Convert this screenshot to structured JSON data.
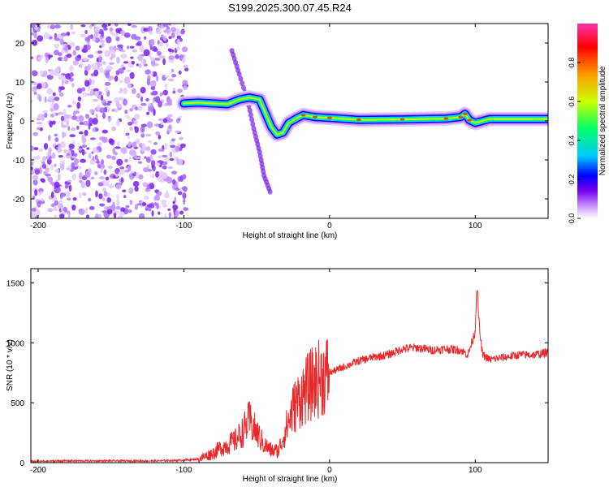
{
  "page": {
    "title": "S199.2025.300.07.45.R24"
  },
  "chart_data": [
    {
      "type": "heatmap",
      "title": "S199.2025.300.07.45.R24",
      "xlabel": "Height of straight line (km)",
      "ylabel": "Frequency (Hz)",
      "xlim": [
        -205,
        150
      ],
      "ylim": [
        -25,
        25
      ],
      "x_ticks": [
        -200,
        -100,
        0,
        100
      ],
      "y_ticks": [
        -20,
        -10,
        0,
        10,
        20
      ],
      "colorbar": {
        "label": "Normalized spectral amplitude",
        "range": [
          0,
          1
        ],
        "ticks": [
          0.0,
          0.2,
          0.4,
          0.6,
          0.8
        ],
        "colormap": [
          "#ffffff",
          "#cc99ff",
          "#7700ee",
          "#0000ff",
          "#00ccff",
          "#00ff66",
          "#ccff00",
          "#ff9900",
          "#ff0000",
          "#ff33aa"
        ]
      },
      "ridge": [
        {
          "x": -100,
          "f": 4.5
        },
        {
          "x": -90,
          "f": 4.7
        },
        {
          "x": -80,
          "f": 4.5
        },
        {
          "x": -70,
          "f": 4.3
        },
        {
          "x": -62,
          "f": 5.5
        },
        {
          "x": -55,
          "f": 6.0
        },
        {
          "x": -48,
          "f": 5.5
        },
        {
          "x": -44,
          "f": 2.0
        },
        {
          "x": -40,
          "f": -1.5
        },
        {
          "x": -36,
          "f": -3.5
        },
        {
          "x": -32,
          "f": -3.0
        },
        {
          "x": -28,
          "f": -0.5
        },
        {
          "x": -22,
          "f": 0.8
        },
        {
          "x": -18,
          "f": 1.5
        },
        {
          "x": -10,
          "f": 1.0
        },
        {
          "x": 0,
          "f": 0.8
        },
        {
          "x": 20,
          "f": 0.3
        },
        {
          "x": 50,
          "f": 0.4
        },
        {
          "x": 80,
          "f": 0.6
        },
        {
          "x": 90,
          "f": 1.0
        },
        {
          "x": 93,
          "f": 1.8
        },
        {
          "x": 96,
          "f": 0.2
        },
        {
          "x": 100,
          "f": -0.5
        },
        {
          "x": 110,
          "f": 0.5
        },
        {
          "x": 150,
          "f": 0.5
        }
      ],
      "diagonal_feature": [
        {
          "x": -67,
          "f": 18
        },
        {
          "x": -62,
          "f": 12
        },
        {
          "x": -56,
          "f": 5
        },
        {
          "x": -52,
          "f": -2
        },
        {
          "x": -48,
          "f": -8
        },
        {
          "x": -45,
          "f": -14
        },
        {
          "x": -40,
          "f": -19
        }
      ]
    },
    {
      "type": "line",
      "xlabel": "Height of straight line (km)",
      "ylabel": "SNR (10 * v/v)",
      "xlim": [
        -205,
        150
      ],
      "ylim": [
        0,
        1620
      ],
      "x_ticks": [
        -200,
        -100,
        0,
        100
      ],
      "y_ticks": [
        0,
        500,
        1000,
        1500
      ],
      "color": "#e8282a",
      "series": [
        {
          "name": "SNR",
          "x": [
            -205,
            -180,
            -150,
            -120,
            -100,
            -90,
            -80,
            -75,
            -70,
            -65,
            -60,
            -55,
            -50,
            -45,
            -40,
            -35,
            -30,
            -25,
            -20,
            -15,
            -10,
            -5,
            0,
            10,
            20,
            30,
            40,
            50,
            60,
            70,
            80,
            90,
            95,
            100,
            101,
            103,
            105,
            110,
            120,
            130,
            140,
            150
          ],
          "y": [
            10,
            15,
            15,
            15,
            20,
            30,
            80,
            120,
            150,
            180,
            250,
            350,
            250,
            150,
            100,
            100,
            280,
            450,
            550,
            620,
            680,
            720,
            750,
            800,
            850,
            880,
            900,
            950,
            960,
            940,
            950,
            940,
            900,
            1100,
            1500,
            1100,
            900,
            860,
            880,
            900,
            900,
            920
          ]
        }
      ]
    }
  ]
}
